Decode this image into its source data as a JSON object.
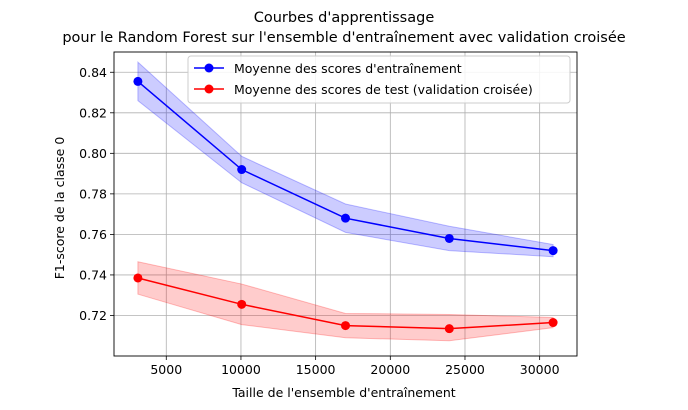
{
  "chart_data": {
    "type": "line",
    "title": "Courbes d'apprentissage",
    "subtitle": "pour le Random Forest sur l'ensemble d'entraînement avec validation croisée",
    "xlabel": "Taille de l'ensemble d'entraînement",
    "ylabel": "F1-score de la classe 0",
    "xlim": [
      1500,
      32500
    ],
    "ylim": [
      0.7,
      0.85
    ],
    "xticks": [
      5000,
      10000,
      15000,
      20000,
      25000,
      30000
    ],
    "yticks": [
      0.72,
      0.74,
      0.76,
      0.78,
      0.8,
      0.82,
      0.84
    ],
    "grid": true,
    "legend_position": "top-right",
    "x": [
      3100,
      10050,
      17000,
      23950,
      30900
    ],
    "series": [
      {
        "name": "Moyenne des scores d'entraînement",
        "color": "#0000ff",
        "band_color": "#0000ff",
        "values": [
          0.8355,
          0.792,
          0.768,
          0.758,
          0.752
        ],
        "upper": [
          0.845,
          0.7985,
          0.775,
          0.764,
          0.755
        ],
        "lower": [
          0.826,
          0.7855,
          0.761,
          0.752,
          0.749
        ]
      },
      {
        "name": "Moyenne des scores de test (validation croisée)",
        "color": "#ff0000",
        "band_color": "#ff0000",
        "values": [
          0.7385,
          0.7255,
          0.715,
          0.7135,
          0.7165
        ],
        "upper": [
          0.7465,
          0.7355,
          0.721,
          0.7205,
          0.719
        ],
        "lower": [
          0.7305,
          0.7155,
          0.709,
          0.7075,
          0.714
        ]
      }
    ]
  }
}
